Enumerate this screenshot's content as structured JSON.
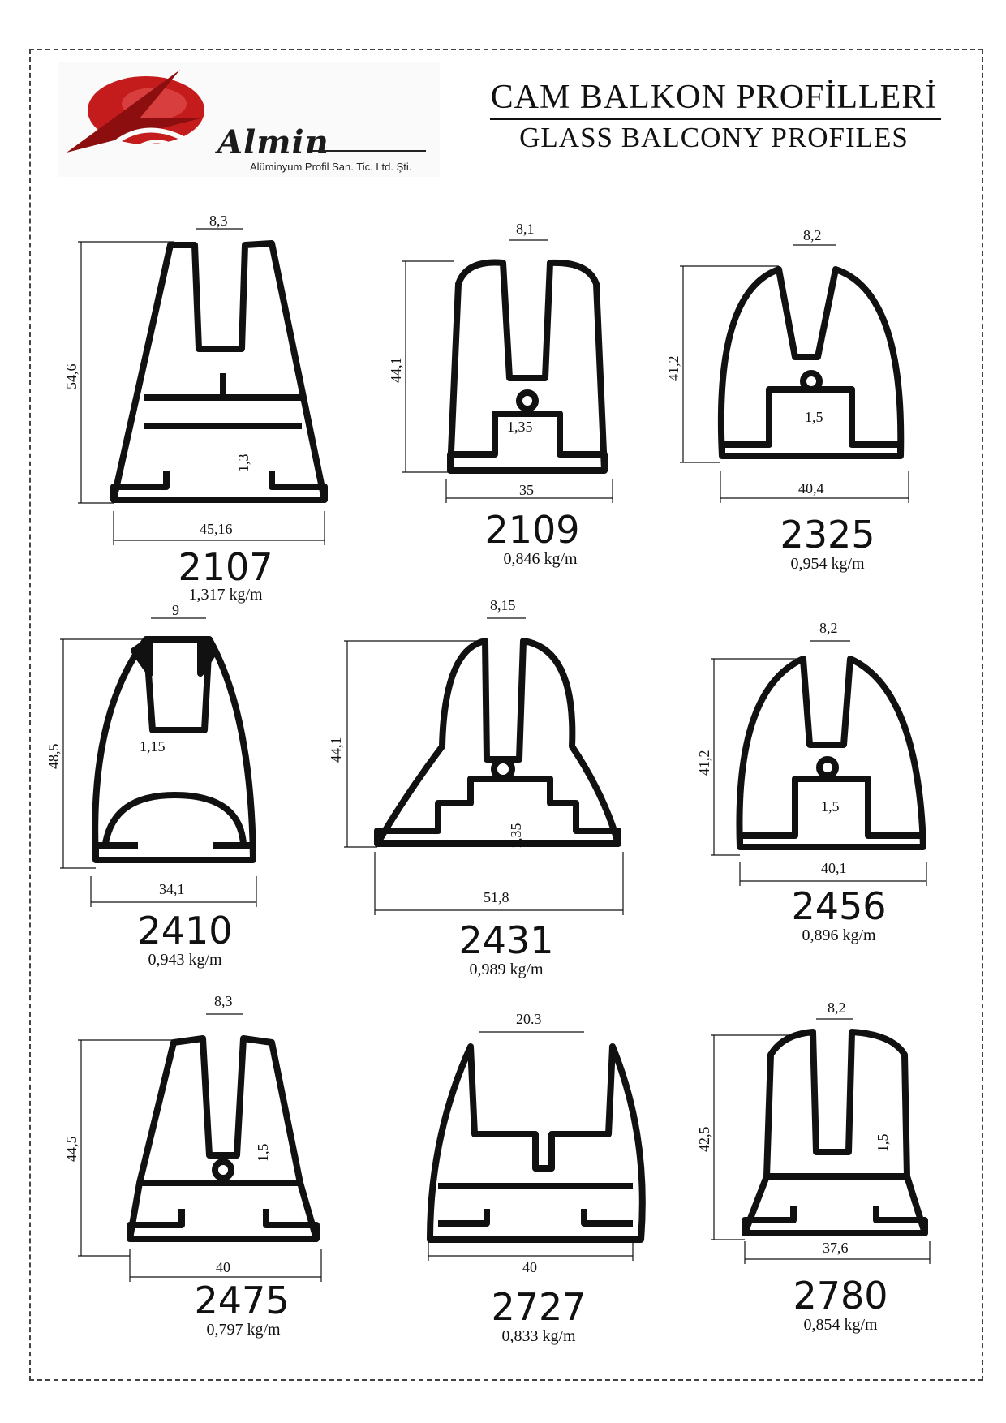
{
  "header": {
    "title_tr": "CAM BALKON PROFİLLERİ",
    "title_en": "GLASS BALCONY PROFILES",
    "logo_name": "Almin",
    "logo_subtitle": "Alüminyum Profil San. Tic. Ltd. Şti.",
    "logo_icon": "almin-logo-icon",
    "brand_color": "#c41c1c"
  },
  "profiles": [
    {
      "code": "2107",
      "weight": "1,317 kg/m",
      "width": "45,16",
      "height": "54,6",
      "slot": "8,3",
      "wall": "1,3"
    },
    {
      "code": "2109",
      "weight": "0,846 kg/m",
      "width": "35",
      "height": "44,1",
      "slot": "8,1",
      "wall": "1,35"
    },
    {
      "code": "2325",
      "weight": "0,954 kg/m",
      "width": "40,4",
      "height": "41,2",
      "slot": "8,2",
      "wall": "1,5"
    },
    {
      "code": "2410",
      "weight": "0,943 kg/m",
      "width": "34,1",
      "height": "48,5",
      "slot": "9",
      "wall": "1,15"
    },
    {
      "code": "2431",
      "weight": "0,989 kg/m",
      "width": "51,8",
      "height": "44,1",
      "slot": "8,15",
      "wall": "1,35"
    },
    {
      "code": "2456",
      "weight": "0,896 kg/m",
      "width": "40,1",
      "height": "41,2",
      "slot": "8,2",
      "wall": "1,5"
    },
    {
      "code": "2475",
      "weight": "0,797 kg/m",
      "width": "40",
      "height": "44,5",
      "slot": "8,3",
      "wall": "1,5"
    },
    {
      "code": "2727",
      "weight": "0,833 kg/m",
      "width": "40",
      "height": "",
      "slot": "20.3",
      "wall": ""
    },
    {
      "code": "2780",
      "weight": "0,854 kg/m",
      "width": "37,6",
      "height": "42,5",
      "slot": "8,2",
      "wall": "1,5"
    }
  ]
}
